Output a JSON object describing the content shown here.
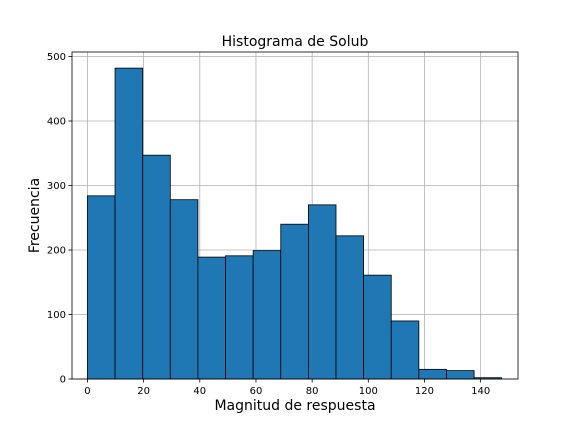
{
  "chart_data": {
    "type": "bar",
    "title": "Histograma de Solub",
    "xlabel": "Magnitud de respuesta",
    "ylabel": "Frecuencia",
    "bin_edges": [
      0,
      9.83,
      19.67,
      29.5,
      39.33,
      49.17,
      59.0,
      68.83,
      78.67,
      88.5,
      98.33,
      108.17,
      118.0,
      127.83,
      137.67,
      147.5
    ],
    "values": [
      284,
      482,
      347,
      278,
      189,
      191,
      199,
      240,
      270,
      222,
      161,
      90,
      15,
      13,
      2
    ],
    "xlim": [
      -5.5,
      153.3
    ],
    "ylim": [
      0,
      507
    ],
    "xticks": [
      0,
      20,
      40,
      60,
      80,
      100,
      120,
      140
    ],
    "yticks": [
      0,
      100,
      200,
      300,
      400,
      500
    ],
    "grid": true,
    "bar_color": "#1f77b4",
    "edge_color": "#000000"
  }
}
